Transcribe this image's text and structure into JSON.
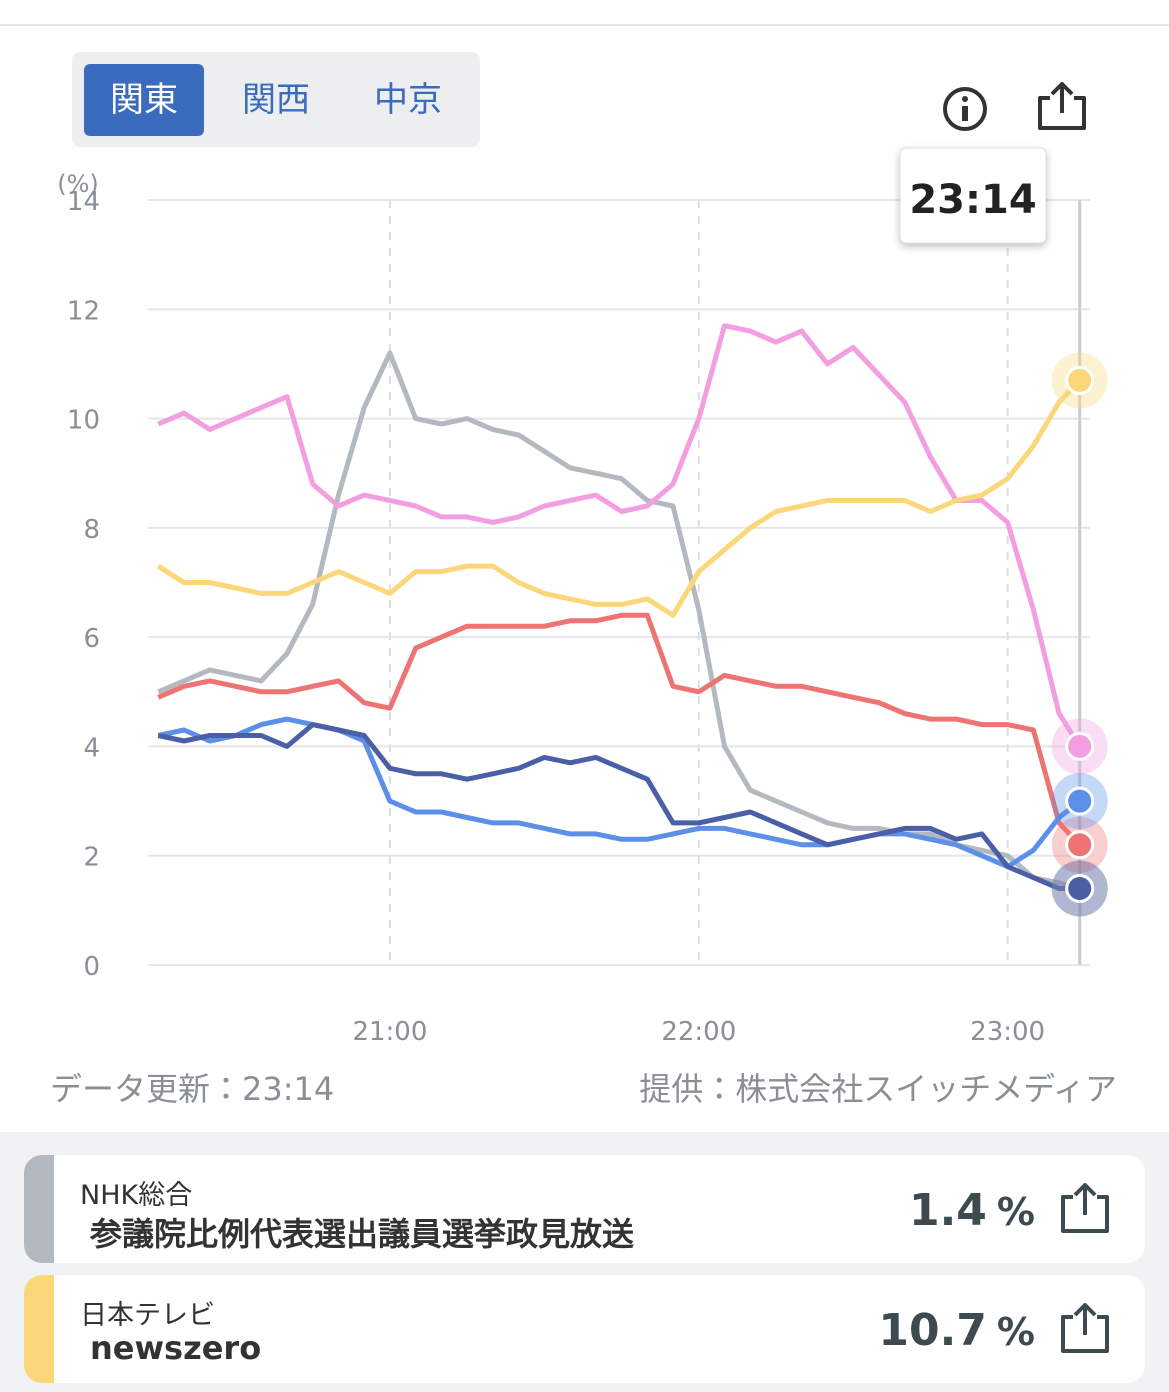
{
  "tabs": {
    "items": [
      "関東",
      "関西",
      "中京"
    ],
    "active": 0
  },
  "chart_data": {
    "type": "line",
    "y_unit_label": "(%)",
    "x": [
      "20:15",
      "20:20",
      "20:25",
      "20:30",
      "20:35",
      "20:40",
      "20:45",
      "20:50",
      "20:55",
      "21:00",
      "21:05",
      "21:10",
      "21:15",
      "21:20",
      "21:25",
      "21:30",
      "21:35",
      "21:40",
      "21:45",
      "21:50",
      "21:55",
      "22:00",
      "22:05",
      "22:10",
      "22:15",
      "22:20",
      "22:25",
      "22:30",
      "22:35",
      "22:40",
      "22:45",
      "22:50",
      "22:55",
      "23:00",
      "23:05",
      "23:10",
      "23:14"
    ],
    "xlim": [
      "20:13",
      "23:16"
    ],
    "xticks": [
      "21:00",
      "22:00",
      "23:00"
    ],
    "ylim": [
      0,
      14
    ],
    "yticks": [
      0,
      2,
      4,
      6,
      8,
      10,
      12,
      14
    ],
    "grid": true,
    "tooltip": {
      "x_index": 36
    },
    "series": [
      {
        "color": "#b4b9c0",
        "values": [
          5.0,
          5.2,
          5.4,
          5.3,
          5.2,
          5.7,
          6.6,
          8.6,
          10.2,
          11.2,
          10.0,
          9.9,
          10.0,
          9.8,
          9.7,
          9.4,
          9.1,
          9.0,
          8.9,
          8.5,
          8.4,
          6.5,
          4.0,
          3.2,
          3.0,
          2.8,
          2.6,
          2.5,
          2.5,
          2.4,
          2.4,
          2.2,
          2.1,
          2.0,
          1.6,
          1.5,
          1.4
        ]
      },
      {
        "color": "#f29ee0",
        "values": [
          9.9,
          10.1,
          9.8,
          10.0,
          10.2,
          10.4,
          8.8,
          8.4,
          8.6,
          8.5,
          8.4,
          8.2,
          8.2,
          8.1,
          8.2,
          8.4,
          8.5,
          8.6,
          8.3,
          8.4,
          8.8,
          10.0,
          11.7,
          11.6,
          11.4,
          11.6,
          11.0,
          11.3,
          10.8,
          10.3,
          9.3,
          8.5,
          8.5,
          8.1,
          6.5,
          4.6,
          4.0
        ]
      },
      {
        "color": "#fcd77a",
        "values": [
          7.3,
          7.0,
          7.0,
          6.9,
          6.8,
          6.8,
          7.0,
          7.2,
          7.0,
          6.8,
          7.2,
          7.2,
          7.3,
          7.3,
          7.0,
          6.8,
          6.7,
          6.6,
          6.6,
          6.7,
          6.4,
          7.2,
          7.6,
          8.0,
          8.3,
          8.4,
          8.5,
          8.5,
          8.5,
          8.5,
          8.3,
          8.5,
          8.6,
          8.9,
          9.5,
          10.3,
          10.7
        ]
      },
      {
        "color": "#ee7474",
        "values": [
          4.9,
          5.1,
          5.2,
          5.1,
          5.0,
          5.0,
          5.1,
          5.2,
          4.8,
          4.7,
          5.8,
          6.0,
          6.2,
          6.2,
          6.2,
          6.2,
          6.3,
          6.3,
          6.4,
          6.4,
          5.1,
          5.0,
          5.3,
          5.2,
          5.1,
          5.1,
          5.0,
          4.9,
          4.8,
          4.6,
          4.5,
          4.5,
          4.4,
          4.4,
          4.3,
          2.6,
          2.2
        ]
      },
      {
        "color": "#5b8fe8",
        "values": [
          4.2,
          4.3,
          4.1,
          4.2,
          4.4,
          4.5,
          4.4,
          4.3,
          4.1,
          3.0,
          2.8,
          2.8,
          2.7,
          2.6,
          2.6,
          2.5,
          2.4,
          2.4,
          2.3,
          2.3,
          2.4,
          2.5,
          2.5,
          2.4,
          2.3,
          2.2,
          2.2,
          2.3,
          2.4,
          2.4,
          2.3,
          2.2,
          2.0,
          1.8,
          2.1,
          2.7,
          3.0
        ]
      },
      {
        "color": "#4a5fa5",
        "values": [
          4.2,
          4.1,
          4.2,
          4.2,
          4.2,
          4.0,
          4.4,
          4.3,
          4.2,
          3.6,
          3.5,
          3.5,
          3.4,
          3.5,
          3.6,
          3.8,
          3.7,
          3.8,
          3.6,
          3.4,
          2.6,
          2.6,
          2.7,
          2.8,
          2.6,
          2.4,
          2.2,
          2.3,
          2.4,
          2.5,
          2.5,
          2.3,
          2.4,
          1.8,
          1.6,
          1.4,
          1.4
        ]
      }
    ]
  },
  "footer": {
    "updated": "データ更新：23:14",
    "provider": "提供：株式会社スイッチメディア"
  },
  "cards": [
    {
      "channel": "NHK総合",
      "program": "参議院比例代表選出議員選挙政見放送",
      "value": 1.4,
      "unit": "%",
      "color": "#b4b9c0"
    },
    {
      "channel": "日本テレビ",
      "program": "newszero",
      "value": 10.7,
      "unit": "%",
      "color": "#fcd77a"
    }
  ]
}
